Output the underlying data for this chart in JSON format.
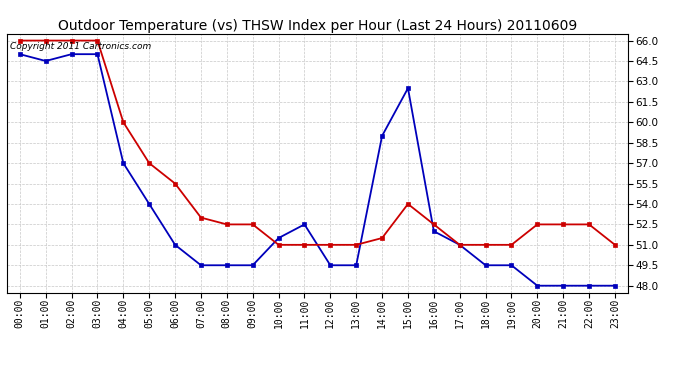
{
  "title": "Outdoor Temperature (vs) THSW Index per Hour (Last 24 Hours) 20110609",
  "copyright_text": "Copyright 2011 Cartronics.com",
  "hours": [
    "00:00",
    "01:00",
    "02:00",
    "03:00",
    "04:00",
    "05:00",
    "06:00",
    "07:00",
    "08:00",
    "09:00",
    "10:00",
    "11:00",
    "12:00",
    "13:00",
    "14:00",
    "15:00",
    "16:00",
    "17:00",
    "18:00",
    "19:00",
    "20:00",
    "21:00",
    "22:00",
    "23:00"
  ],
  "temp_blue": [
    65.0,
    64.5,
    65.0,
    65.0,
    57.0,
    54.0,
    51.0,
    49.5,
    49.5,
    49.5,
    51.5,
    52.5,
    49.5,
    49.5,
    59.0,
    62.5,
    52.0,
    51.0,
    49.5,
    49.5,
    48.0,
    48.0,
    48.0,
    48.0
  ],
  "thsw_red": [
    66.0,
    66.0,
    66.0,
    66.0,
    60.0,
    57.0,
    55.5,
    53.0,
    52.5,
    52.5,
    51.0,
    51.0,
    51.0,
    51.0,
    51.5,
    54.0,
    52.5,
    51.0,
    51.0,
    51.0,
    52.5,
    52.5,
    52.5,
    51.0
  ],
  "ylim": [
    47.5,
    66.5
  ],
  "yticks": [
    48.0,
    49.5,
    51.0,
    52.5,
    54.0,
    55.5,
    57.0,
    58.5,
    60.0,
    61.5,
    63.0,
    64.5,
    66.0
  ],
  "bg_color": "#ffffff",
  "grid_color": "#c8c8c8",
  "blue_color": "#0000bb",
  "red_color": "#cc0000",
  "title_fontsize": 10,
  "copyright_fontsize": 6.5,
  "tick_fontsize": 7,
  "ytick_fontsize": 7.5
}
